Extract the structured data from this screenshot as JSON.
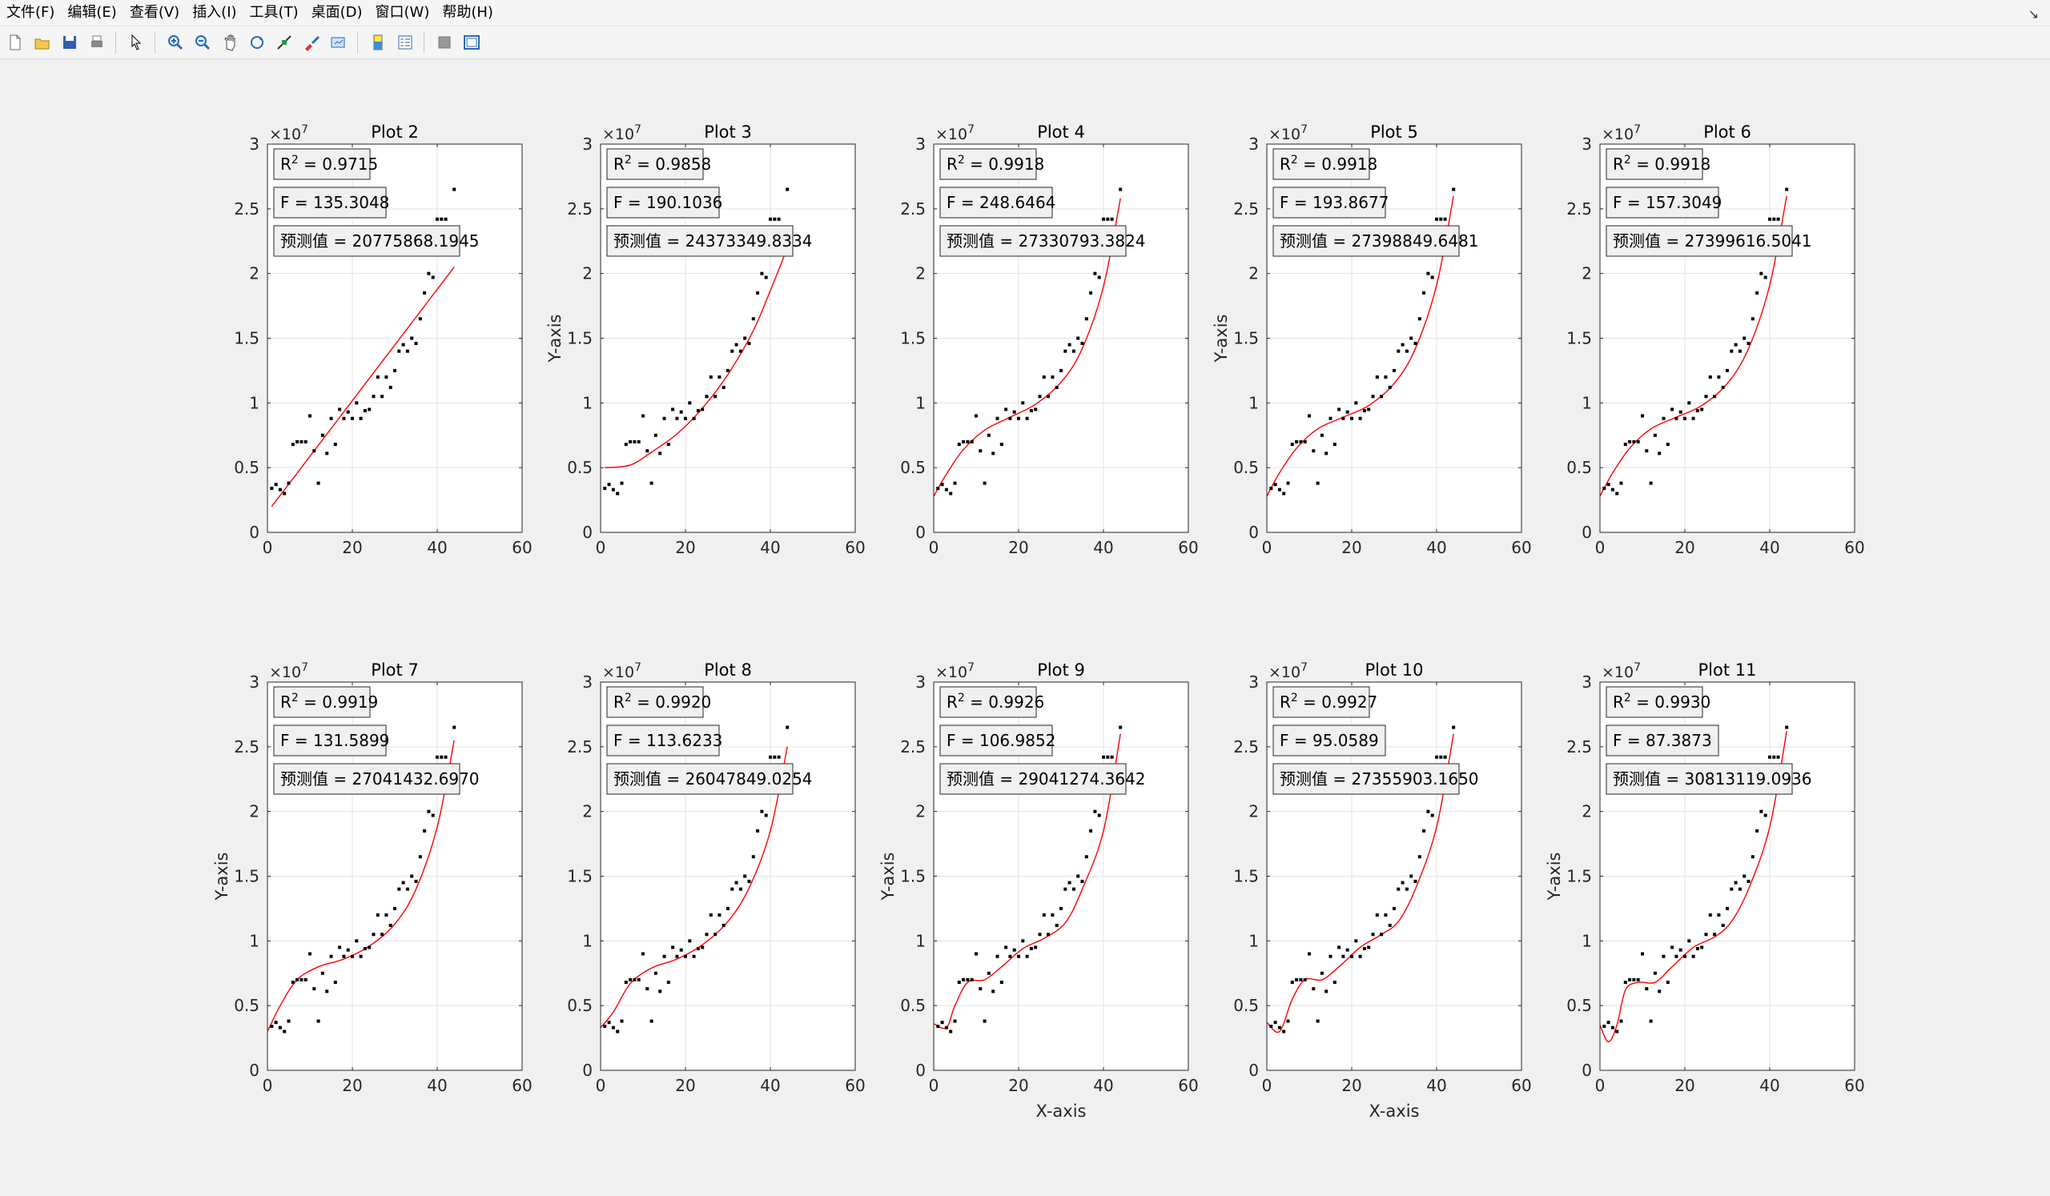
{
  "menu": [
    "文件(F)",
    "编辑(E)",
    "查看(V)",
    "插入(I)",
    "工具(T)",
    "桌面(D)",
    "窗口(W)",
    "帮助(H)"
  ],
  "toolbar": {
    "icons": [
      "new-figure-icon",
      "open-file-icon",
      "save-icon",
      "print-icon",
      "pointer-icon",
      "zoom-in-icon",
      "zoom-out-icon",
      "pan-icon",
      "rotate-3d-icon",
      "data-cursor-icon",
      "brush-icon",
      "link-plot-icon",
      "insert-colorbar-icon",
      "insert-legend-icon",
      "hide-plot-tools-icon",
      "show-plot-tools-icon"
    ]
  },
  "colors": {
    "fit_line": "#ff0000",
    "points": "#000000",
    "axes_bg": "#ffffff",
    "figure_bg": "#f0f0f0",
    "box_bg": "#f0f0f0"
  },
  "chart_data": [
    {
      "type": "scatter",
      "title": "Plot 2",
      "ylabel": "",
      "xlabel": "",
      "r2": "0.9715",
      "f": "135.3048",
      "pred_label": "预测值",
      "pred": "20775868.1945",
      "degree": 1,
      "fit": [
        [
          1,
          0.2
        ],
        [
          44,
          2.05
        ]
      ]
    },
    {
      "type": "scatter",
      "title": "Plot 3",
      "ylabel": "Y-axis",
      "xlabel": "",
      "r2": "0.9858",
      "f": "190.1036",
      "pred_label": "预测值",
      "pred": "24373349.8334",
      "degree": 2,
      "fit": [
        [
          1,
          0.5
        ],
        [
          7,
          0.52
        ],
        [
          12,
          0.62
        ],
        [
          18,
          0.76
        ],
        [
          24,
          0.96
        ],
        [
          30,
          1.22
        ],
        [
          36,
          1.56
        ],
        [
          41,
          1.95
        ],
        [
          44,
          2.2
        ]
      ]
    },
    {
      "type": "scatter",
      "title": "Plot 4",
      "ylabel": "",
      "xlabel": "",
      "r2": "0.9918",
      "f": "248.6464",
      "pred_label": "预测值",
      "pred": "27330793.3824",
      "degree": 3,
      "fit": [
        [
          0,
          0.28
        ],
        [
          3,
          0.45
        ],
        [
          7,
          0.64
        ],
        [
          12,
          0.79
        ],
        [
          18,
          0.89
        ],
        [
          24,
          0.99
        ],
        [
          30,
          1.16
        ],
        [
          35,
          1.42
        ],
        [
          40,
          1.9
        ],
        [
          44,
          2.58
        ]
      ]
    },
    {
      "type": "scatter",
      "title": "Plot 5",
      "ylabel": "Y-axis",
      "xlabel": "",
      "r2": "0.9918",
      "f": "193.8677",
      "pred_label": "预测值",
      "pred": "27398849.6481",
      "degree": 4,
      "fit": [
        [
          0,
          0.28
        ],
        [
          3,
          0.46
        ],
        [
          7,
          0.65
        ],
        [
          12,
          0.8
        ],
        [
          18,
          0.89
        ],
        [
          24,
          0.98
        ],
        [
          30,
          1.15
        ],
        [
          35,
          1.42
        ],
        [
          40,
          1.91
        ],
        [
          44,
          2.6
        ]
      ]
    },
    {
      "type": "scatter",
      "title": "Plot 6",
      "ylabel": "",
      "xlabel": "",
      "r2": "0.9918",
      "f": "157.3049",
      "pred_label": "预测值",
      "pred": "27399616.5041",
      "degree": 5,
      "fit": [
        [
          0,
          0.28
        ],
        [
          3,
          0.46
        ],
        [
          7,
          0.65
        ],
        [
          12,
          0.8
        ],
        [
          18,
          0.89
        ],
        [
          24,
          0.98
        ],
        [
          30,
          1.15
        ],
        [
          35,
          1.42
        ],
        [
          40,
          1.91
        ],
        [
          44,
          2.6
        ]
      ]
    },
    {
      "type": "scatter",
      "title": "Plot 7",
      "ylabel": "Y-axis",
      "xlabel": "",
      "r2": "0.9919",
      "f": "131.5899",
      "pred_label": "预测值",
      "pred": "27041432.6970",
      "degree": 6,
      "fit": [
        [
          0,
          0.3
        ],
        [
          3,
          0.5
        ],
        [
          7,
          0.7
        ],
        [
          12,
          0.8
        ],
        [
          18,
          0.86
        ],
        [
          24,
          0.96
        ],
        [
          30,
          1.13
        ],
        [
          35,
          1.4
        ],
        [
          40,
          1.88
        ],
        [
          44,
          2.55
        ]
      ]
    },
    {
      "type": "scatter",
      "title": "Plot 8",
      "ylabel": "",
      "xlabel": "",
      "r2": "0.9920",
      "f": "113.6233",
      "pred_label": "预测值",
      "pred": "26047849.0254",
      "degree": 7,
      "fit": [
        [
          0,
          0.33
        ],
        [
          3,
          0.45
        ],
        [
          7,
          0.67
        ],
        [
          12,
          0.79
        ],
        [
          18,
          0.86
        ],
        [
          24,
          0.97
        ],
        [
          30,
          1.15
        ],
        [
          35,
          1.41
        ],
        [
          40,
          1.85
        ],
        [
          44,
          2.5
        ]
      ]
    },
    {
      "type": "scatter",
      "title": "Plot 9",
      "ylabel": "Y-axis",
      "xlabel": "X-axis",
      "r2": "0.9926",
      "f": "106.9852",
      "pred_label": "预测值",
      "pred": "29041274.3642",
      "degree": 8,
      "fit": [
        [
          0,
          0.36
        ],
        [
          3,
          0.33
        ],
        [
          5,
          0.5
        ],
        [
          8,
          0.68
        ],
        [
          12,
          0.7
        ],
        [
          16,
          0.8
        ],
        [
          21,
          0.94
        ],
        [
          26,
          1.02
        ],
        [
          31,
          1.14
        ],
        [
          35,
          1.4
        ],
        [
          40,
          1.85
        ],
        [
          44,
          2.6
        ]
      ]
    },
    {
      "type": "scatter",
      "title": "Plot 10",
      "ylabel": "",
      "xlabel": "X-axis",
      "r2": "0.9927",
      "f": "95.0589",
      "pred_label": "预测值",
      "pred": "27355903.1650",
      "degree": 9,
      "fit": [
        [
          0,
          0.37
        ],
        [
          3,
          0.3
        ],
        [
          6,
          0.55
        ],
        [
          9,
          0.7
        ],
        [
          13,
          0.7
        ],
        [
          17,
          0.8
        ],
        [
          22,
          0.95
        ],
        [
          27,
          1.05
        ],
        [
          31,
          1.15
        ],
        [
          35,
          1.4
        ],
        [
          40,
          1.88
        ],
        [
          44,
          2.6
        ]
      ]
    },
    {
      "type": "scatter",
      "title": "Plot 11",
      "ylabel": "Y-axis",
      "xlabel": "",
      "r2": "0.9930",
      "f": "87.3873",
      "pred_label": "预测值",
      "pred": "30813119.0936",
      "degree": 10,
      "fit": [
        [
          0,
          0.35
        ],
        [
          2,
          0.22
        ],
        [
          4,
          0.35
        ],
        [
          6,
          0.62
        ],
        [
          9,
          0.68
        ],
        [
          13,
          0.68
        ],
        [
          17,
          0.8
        ],
        [
          22,
          0.95
        ],
        [
          27,
          1.03
        ],
        [
          31,
          1.15
        ],
        [
          35,
          1.4
        ],
        [
          40,
          1.88
        ],
        [
          44,
          2.62
        ]
      ]
    }
  ],
  "scatter_points": {
    "x": [
      1,
      2,
      3,
      4,
      5,
      6,
      7,
      8,
      9,
      10,
      11,
      12,
      13,
      14,
      15,
      16,
      17,
      18,
      19,
      20,
      21,
      22,
      23,
      24,
      25,
      26,
      27,
      28,
      29,
      30,
      31,
      32,
      33,
      34,
      35,
      36,
      37,
      38,
      39,
      40,
      41,
      42,
      44
    ],
    "y": [
      0.34,
      0.37,
      0.33,
      0.3,
      0.38,
      0.68,
      0.7,
      0.7,
      0.7,
      0.9,
      0.63,
      0.38,
      0.75,
      0.61,
      0.88,
      0.68,
      0.95,
      0.88,
      0.93,
      0.88,
      1.0,
      0.88,
      0.94,
      0.95,
      1.05,
      1.2,
      1.05,
      1.2,
      1.12,
      1.25,
      1.4,
      1.45,
      1.4,
      1.5,
      1.46,
      1.65,
      1.85,
      2.0,
      1.97,
      2.42,
      2.42,
      2.42,
      2.65
    ]
  },
  "axes_common": {
    "xlim": [
      0,
      60
    ],
    "ylim": [
      0,
      3
    ],
    "xticks": [
      "0",
      "20",
      "40",
      "60"
    ],
    "yticks": [
      "0",
      "0.5",
      "1",
      "1.5",
      "2",
      "2.5",
      "3"
    ],
    "exponent_base": "×10",
    "exponent": "7",
    "r2_label": "R",
    "r2_sup": "2",
    "f_label": "F",
    "grid": true
  }
}
